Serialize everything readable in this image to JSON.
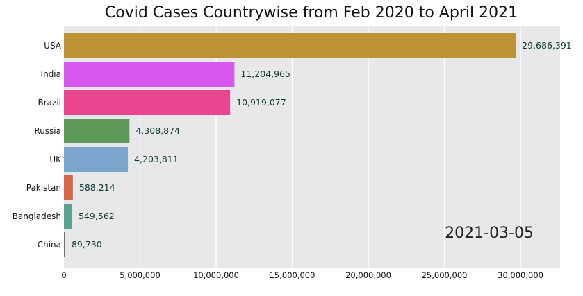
{
  "chart_data": {
    "type": "bar",
    "orientation": "horizontal",
    "title": "Covid Cases Countrywise from Feb 2020 to April 2021",
    "date_label": "2021-03-05",
    "categories": [
      "USA",
      "India",
      "Brazil",
      "Russia",
      "UK",
      "Pakistan",
      "Bangladesh",
      "China"
    ],
    "values": [
      29686391,
      11204965,
      10919077,
      4308874,
      4203811,
      588214,
      549562,
      89730
    ],
    "value_labels": [
      "29,686,391",
      "11,204,965",
      "10,919,077",
      "4,308,874",
      "4,203,811",
      "588,214",
      "549,562",
      "89,730"
    ],
    "colors": [
      "#bd9333",
      "#d757f0",
      "#e9448f",
      "#5d9a5a",
      "#7aa5cd",
      "#d76649",
      "#5aa291",
      "#6e6e6e"
    ],
    "xticks": [
      0,
      5000000,
      10000000,
      15000000,
      20000000,
      25000000,
      30000000
    ],
    "xtick_labels": [
      "0",
      "5,000,000",
      "10,000,000",
      "15,000,000",
      "20,000,000",
      "25,000,000",
      "30,000,000"
    ],
    "xlim": [
      0,
      32600000
    ],
    "grid": true,
    "background": "#e8e8eb",
    "xlabel": "",
    "ylabel": ""
  }
}
